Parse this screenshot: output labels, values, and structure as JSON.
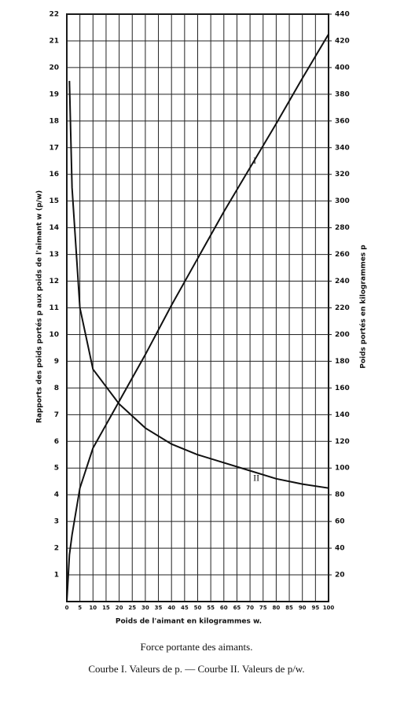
{
  "chart_data": {
    "type": "line",
    "title": "Force portante des aimants.",
    "subtitle": "Courbe I. Valeurs de p. — Courbe II. Valeurs de p/w.",
    "x_label": "Poids de l'aimant en kilogrammes w.",
    "y_label": "Rapports des poids portés p aux poids de l'aimant w (p/w)",
    "y2_label": "Poids portés en kilogrammes p",
    "x": [
      0,
      1,
      2,
      5,
      10,
      20,
      30,
      40,
      50,
      60,
      70,
      80,
      90,
      100
    ],
    "series": [
      {
        "name": "I",
        "color": "#111111",
        "axis": "y2",
        "values": [
          0,
          35,
          50,
          85,
          115,
          150,
          185,
          222,
          257,
          292,
          325,
          358,
          392,
          425
        ]
      },
      {
        "name": "II",
        "color": "#111111",
        "values": [
          null,
          19.5,
          15.5,
          11,
          8.7,
          7.4,
          6.5,
          5.9,
          5.5,
          5.2,
          4.9,
          4.6,
          4.4,
          4.25
        ]
      }
    ],
    "xlim": [
      0,
      100
    ],
    "xticks": [
      0,
      5,
      10,
      15,
      20,
      25,
      30,
      35,
      40,
      45,
      50,
      55,
      60,
      65,
      70,
      75,
      80,
      85,
      90,
      95,
      100
    ],
    "ylim": [
      0,
      22
    ],
    "yticks": [
      1,
      2,
      3,
      4,
      5,
      6,
      7,
      8,
      9,
      10,
      11,
      12,
      13,
      14,
      15,
      16,
      17,
      18,
      19,
      20,
      21,
      22
    ],
    "y2lim": [
      0,
      440
    ],
    "y2ticks": [
      20,
      40,
      60,
      80,
      100,
      120,
      140,
      160,
      180,
      200,
      220,
      240,
      260,
      280,
      300,
      320,
      340,
      360,
      380,
      400,
      420,
      440
    ],
    "grid": true
  }
}
